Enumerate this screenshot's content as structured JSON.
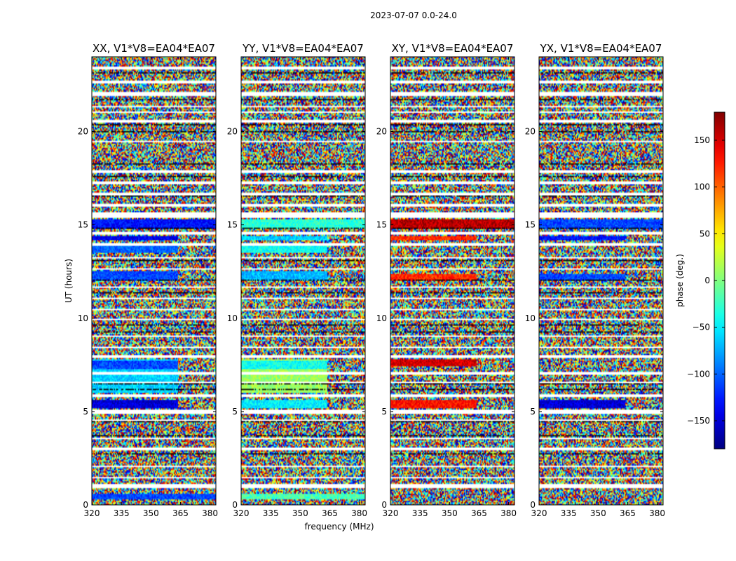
{
  "figure_title": "2023-07-07 0.0-24.0",
  "colorbar": {
    "label": "phase (deg.)",
    "ticks": [
      150,
      100,
      50,
      0,
      -50,
      -100,
      -150
    ],
    "range": [
      -180,
      180
    ],
    "colormap": "jet"
  },
  "chart_data": [
    {
      "type": "heatmap",
      "title": "XX, V1*V8=EA04*EA07",
      "xlabel": "",
      "ylabel": "UT (hours)",
      "xlim": [
        320,
        383
      ],
      "ylim": [
        0,
        24
      ],
      "xticks": [
        320,
        335,
        350,
        365,
        380
      ],
      "yticks": [
        0,
        5,
        10,
        15,
        20
      ],
      "value": "phase (deg.)",
      "coherent_bands": [
        {
          "t0": 0.3,
          "t1": 0.6,
          "f1": 383,
          "phase": -110
        },
        {
          "t0": 5.2,
          "t1": 5.6,
          "f1": 364,
          "phase": -150
        },
        {
          "t0": 6.0,
          "t1": 7.8,
          "f1": 364,
          "phase": -60
        },
        {
          "t0": 7.3,
          "t1": 7.7,
          "f1": 364,
          "phase": -110
        },
        {
          "t0": 12.0,
          "t1": 12.5,
          "f1": 364,
          "phase": -110
        },
        {
          "t0": 13.5,
          "t1": 14.0,
          "f1": 364,
          "phase": -100
        },
        {
          "t0": 14.2,
          "t1": 14.4,
          "f1": 364,
          "phase": -140
        },
        {
          "t0": 14.8,
          "t1": 15.3,
          "f1": 383,
          "phase": -130
        }
      ]
    },
    {
      "type": "heatmap",
      "title": "YY, V1*V8=EA04*EA07",
      "xlabel": "frequency (MHz)",
      "ylabel": "",
      "xlim": [
        320,
        383
      ],
      "ylim": [
        0,
        24
      ],
      "xticks": [
        320,
        335,
        350,
        365,
        380
      ],
      "yticks": [
        0,
        5,
        10,
        15,
        20
      ],
      "value": "phase (deg.)",
      "coherent_bands": [
        {
          "t0": 0.3,
          "t1": 0.6,
          "f1": 383,
          "phase": -20
        },
        {
          "t0": 5.2,
          "t1": 5.6,
          "f1": 364,
          "phase": -50
        },
        {
          "t0": 6.0,
          "t1": 7.8,
          "f1": 364,
          "phase": 10
        },
        {
          "t0": 7.3,
          "t1": 7.7,
          "f1": 364,
          "phase": -40
        },
        {
          "t0": 12.0,
          "t1": 12.5,
          "f1": 364,
          "phase": -70
        },
        {
          "t0": 13.5,
          "t1": 14.0,
          "f1": 364,
          "phase": -40
        },
        {
          "t0": 14.2,
          "t1": 14.4,
          "f1": 364,
          "phase": -60
        },
        {
          "t0": 14.8,
          "t1": 15.3,
          "f1": 383,
          "phase": -30
        }
      ]
    },
    {
      "type": "heatmap",
      "title": "XY, V1*V8=EA04*EA07",
      "xlabel": "",
      "ylabel": "",
      "xlim": [
        320,
        383
      ],
      "ylim": [
        0,
        24
      ],
      "xticks": [
        320,
        335,
        350,
        365,
        380
      ],
      "yticks": [
        0,
        5,
        10,
        15,
        20
      ],
      "value": "phase (deg.)",
      "coherent_bands": [
        {
          "t0": 5.2,
          "t1": 5.6,
          "f1": 364,
          "phase": 130
        },
        {
          "t0": 7.4,
          "t1": 7.8,
          "f1": 364,
          "phase": 150
        },
        {
          "t0": 12.0,
          "t1": 12.4,
          "f1": 364,
          "phase": 120
        },
        {
          "t0": 14.2,
          "t1": 14.4,
          "f1": 364,
          "phase": 120
        },
        {
          "t0": 14.8,
          "t1": 15.3,
          "f1": 383,
          "phase": 160
        }
      ]
    },
    {
      "type": "heatmap",
      "title": "YX, V1*V8=EA04*EA07",
      "xlabel": "",
      "ylabel": "",
      "xlim": [
        320,
        383
      ],
      "ylim": [
        0,
        24
      ],
      "xticks": [
        320,
        335,
        350,
        365,
        380
      ],
      "yticks": [
        0,
        5,
        10,
        15,
        20
      ],
      "value": "phase (deg.)",
      "coherent_bands": [
        {
          "t0": 5.2,
          "t1": 5.6,
          "f1": 364,
          "phase": -150
        },
        {
          "t0": 12.0,
          "t1": 12.4,
          "f1": 364,
          "phase": -110
        },
        {
          "t0": 14.2,
          "t1": 14.4,
          "f1": 364,
          "phase": -130
        },
        {
          "t0": 14.8,
          "t1": 15.3,
          "f1": 383,
          "phase": -110
        }
      ]
    }
  ],
  "flagged_hours": [
    [
      0.9,
      1.1
    ],
    [
      1.4,
      1.5
    ],
    [
      2.0,
      2.1
    ],
    [
      2.9,
      3.1
    ],
    [
      3.5,
      3.6
    ],
    [
      4.5,
      4.6
    ],
    [
      4.9,
      5.1
    ],
    [
      5.8,
      5.9
    ],
    [
      6.5,
      6.6
    ],
    [
      7.0,
      7.1
    ],
    [
      7.9,
      8.0
    ],
    [
      8.4,
      8.5
    ],
    [
      9.0,
      9.1
    ],
    [
      9.9,
      10.0
    ],
    [
      10.4,
      10.5
    ],
    [
      11.0,
      11.1
    ],
    [
      11.6,
      11.7
    ],
    [
      12.6,
      12.7
    ],
    [
      13.2,
      13.3
    ],
    [
      13.9,
      14.0
    ],
    [
      14.5,
      14.6
    ],
    [
      15.4,
      15.7
    ],
    [
      16.0,
      16.1
    ],
    [
      16.6,
      16.7
    ],
    [
      17.2,
      17.3
    ],
    [
      17.8,
      17.9
    ],
    [
      19.4,
      19.5
    ],
    [
      20.5,
      20.6
    ],
    [
      21.0,
      21.1
    ],
    [
      21.3,
      21.4
    ],
    [
      21.9,
      22.1
    ],
    [
      22.6,
      22.7
    ],
    [
      23.3,
      23.5
    ]
  ]
}
